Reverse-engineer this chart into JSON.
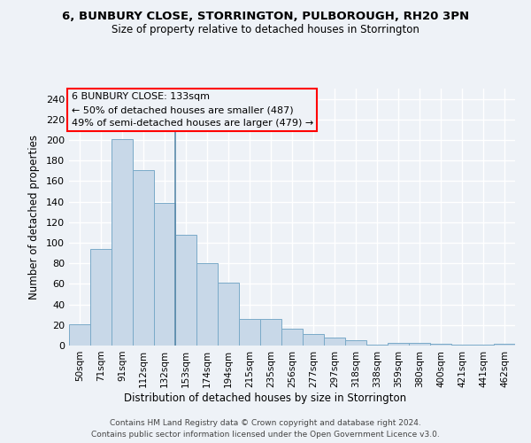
{
  "title": "6, BUNBURY CLOSE, STORRINGTON, PULBOROUGH, RH20 3PN",
  "subtitle": "Size of property relative to detached houses in Storrington",
  "xlabel": "Distribution of detached houses by size in Storrington",
  "ylabel": "Number of detached properties",
  "bar_color": "#c8d8e8",
  "bar_edge_color": "#7aaac8",
  "categories": [
    "50sqm",
    "71sqm",
    "91sqm",
    "112sqm",
    "132sqm",
    "153sqm",
    "174sqm",
    "194sqm",
    "215sqm",
    "235sqm",
    "256sqm",
    "277sqm",
    "297sqm",
    "318sqm",
    "338sqm",
    "359sqm",
    "380sqm",
    "400sqm",
    "421sqm",
    "441sqm",
    "462sqm"
  ],
  "values": [
    21,
    94,
    201,
    171,
    139,
    108,
    80,
    61,
    26,
    26,
    16,
    11,
    8,
    5,
    1,
    3,
    3,
    2,
    1,
    1,
    2
  ],
  "ylim": [
    0,
    250
  ],
  "yticks": [
    0,
    20,
    40,
    60,
    80,
    100,
    120,
    140,
    160,
    180,
    200,
    220,
    240
  ],
  "annotation_box_text": "6 BUNBURY CLOSE: 133sqm\n← 50% of detached houses are smaller (487)\n49% of semi-detached houses are larger (479) →",
  "footer_line1": "Contains HM Land Registry data © Crown copyright and database right 2024.",
  "footer_line2": "Contains public sector information licensed under the Open Government Licence v3.0.",
  "background_color": "#eef2f7",
  "grid_color": "#ffffff",
  "vline_x": 4.5,
  "vline_color": "#5a8aaa"
}
